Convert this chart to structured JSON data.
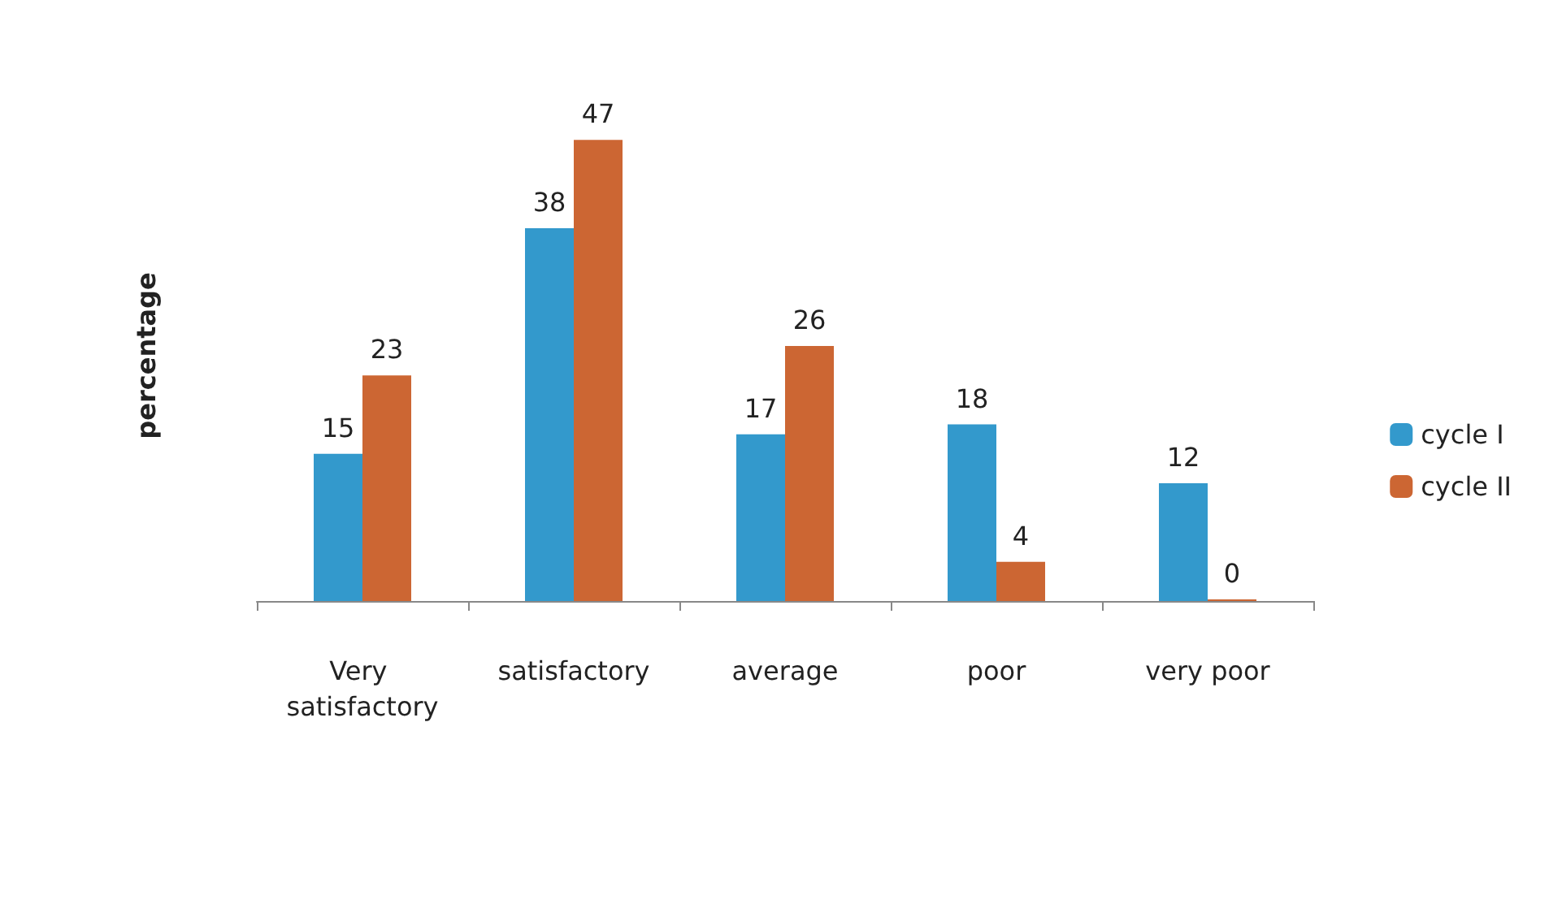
{
  "chart_data": {
    "type": "bar",
    "ylabel": "percentage",
    "categories": [
      "Very satisfactory",
      "satisfactory",
      "average",
      "poor",
      "very poor"
    ],
    "series": [
      {
        "name": "cycle I",
        "color": "#3399cc",
        "values": [
          15,
          38,
          17,
          18,
          12
        ]
      },
      {
        "name": "cycle II",
        "color": "#cc6633",
        "values": [
          23,
          47,
          26,
          4,
          0
        ]
      }
    ],
    "data_labels": true,
    "legend": "right",
    "grid": false,
    "tick_labels": "x"
  }
}
